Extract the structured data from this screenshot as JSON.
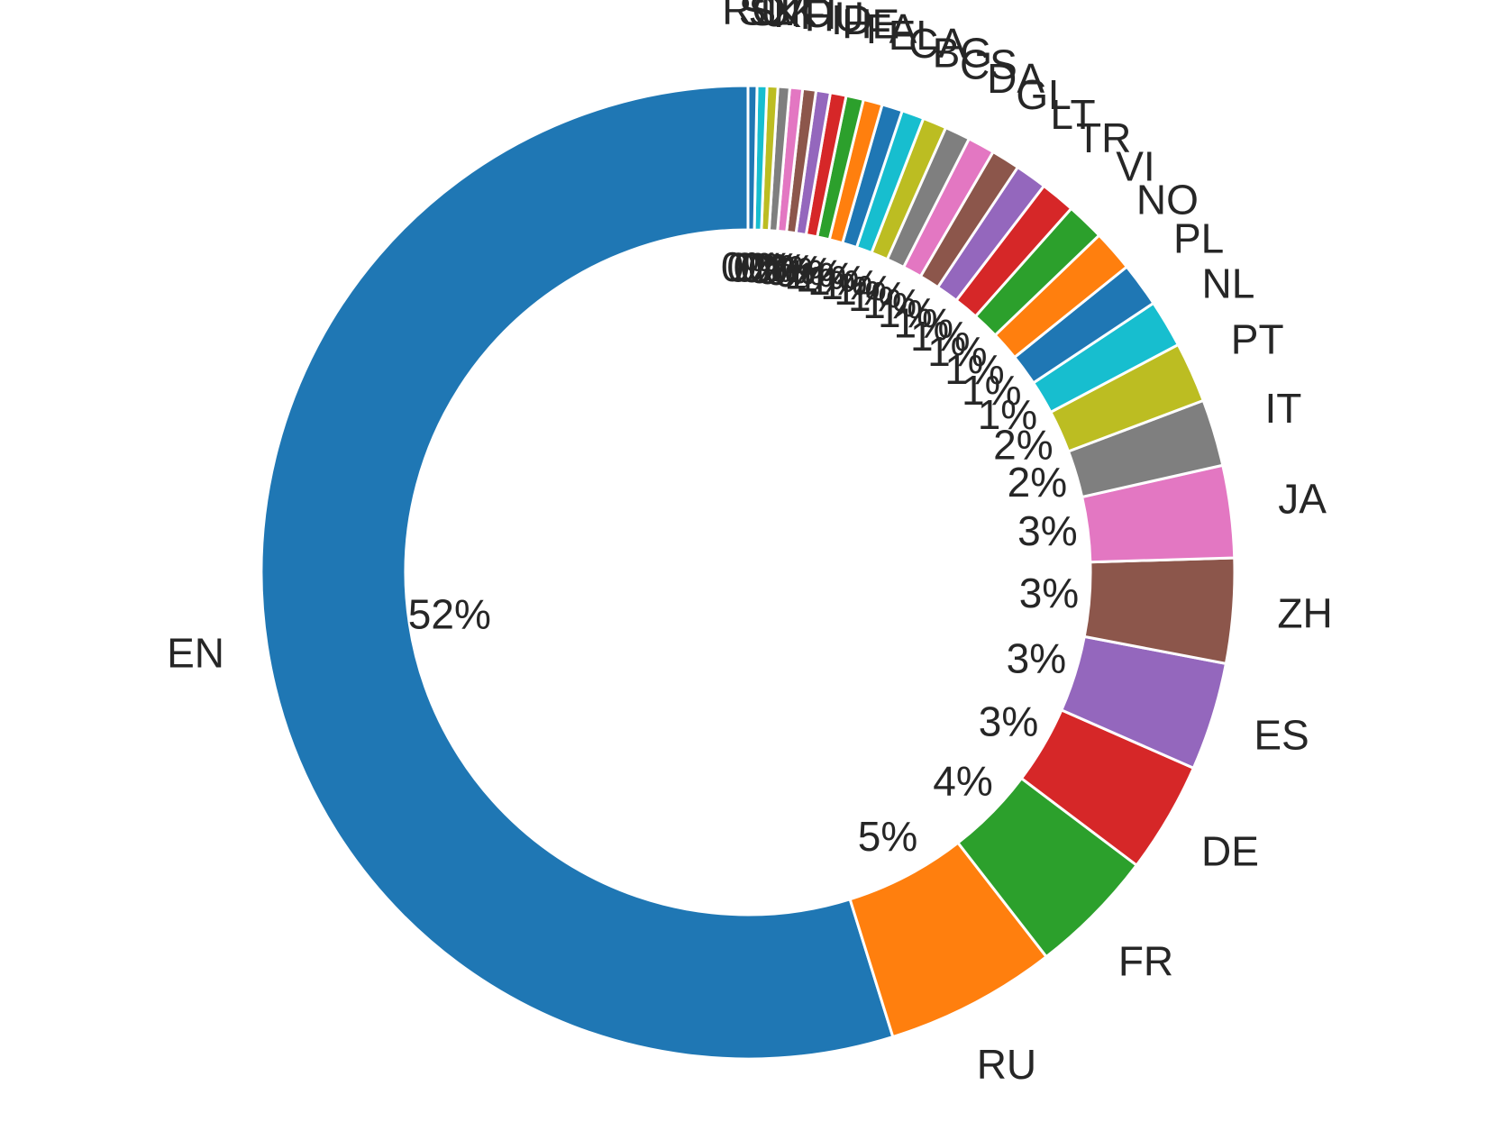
{
  "chart_data": {
    "type": "pie",
    "style": "donut",
    "start_angle_deg": 90,
    "direction": "counterclockwise",
    "colors": [
      "#1f77b4",
      "#ff7f0e",
      "#2ca02c",
      "#d62728",
      "#9467bd",
      "#8c564b",
      "#e377c2",
      "#7f7f7f",
      "#bcbd22",
      "#17becf"
    ],
    "categories": [
      "EN",
      "RU",
      "FR",
      "DE",
      "ES",
      "ZH",
      "JA",
      "IT",
      "PT",
      "NL",
      "PL",
      "NO",
      "VI",
      "TR",
      "LT",
      "GL",
      "DA",
      "CS",
      "BG",
      "CA",
      "EL",
      "FA",
      "HE",
      "ID",
      "HU",
      "FI",
      "KO",
      "UK",
      "SV",
      "SL",
      "RO"
    ],
    "values": [
      52.0,
      5.4,
      4.0,
      3.5,
      3.4,
      3.3,
      2.9,
      2.1,
      1.9,
      1.5,
      1.4,
      1.3,
      1.2,
      1.1,
      1.0,
      0.9,
      0.85,
      0.8,
      0.75,
      0.7,
      0.65,
      0.6,
      0.55,
      0.5,
      0.45,
      0.42,
      0.4,
      0.37,
      0.34,
      0.31,
      0.28
    ],
    "percent_labels": [
      "52%",
      "5%",
      "4%",
      "3%",
      "3%",
      "3%",
      "3%",
      "2%",
      "2%",
      "1%",
      "1%",
      "1%",
      "1%",
      "1%",
      "1%",
      "1%",
      "1%",
      "1%",
      "1%",
      "1%",
      "1%",
      "1%",
      "1%",
      "0%",
      "0%",
      "0%",
      "0%",
      "0%",
      "0%",
      "0%",
      "0%"
    ]
  }
}
